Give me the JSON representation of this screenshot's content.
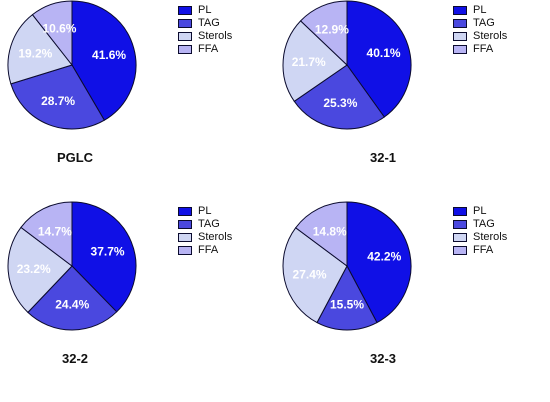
{
  "chart_data": [
    {
      "type": "pie",
      "title": "PGLC",
      "categories": [
        "PL",
        "TAG",
        "Sterols",
        "FFA"
      ],
      "values": [
        41.6,
        28.7,
        19.2,
        10.6
      ],
      "labels": [
        "41.6%",
        "28.7%",
        "19.2%",
        "10.6%"
      ],
      "legend_position": "top-right"
    },
    {
      "type": "pie",
      "title": "32-1",
      "categories": [
        "PL",
        "TAG",
        "Sterols",
        "FFA"
      ],
      "values": [
        40.1,
        25.3,
        21.7,
        12.9
      ],
      "labels": [
        "40.1%",
        "25.3%",
        "21.7%",
        "12.9%"
      ],
      "legend_position": "top-right"
    },
    {
      "type": "pie",
      "title": "32-2",
      "categories": [
        "PL",
        "TAG",
        "Sterols",
        "FFA"
      ],
      "values": [
        37.7,
        24.4,
        23.2,
        14.7
      ],
      "labels": [
        "37.7%",
        "24.4%",
        "23.2%",
        "14.7%"
      ],
      "legend_position": "top-right"
    },
    {
      "type": "pie",
      "title": "32-3",
      "categories": [
        "PL",
        "TAG",
        "Sterols",
        "FFA"
      ],
      "values": [
        42.2,
        15.5,
        27.4,
        14.8
      ],
      "labels": [
        "42.2%",
        "15.5%",
        "27.4%",
        "14.8%"
      ],
      "legend_position": "top-right"
    }
  ],
  "colors": {
    "PL": "#1010e6",
    "TAG": "#4a48df",
    "Sterols": "#cfd6f3",
    "FFA": "#b8b4f4",
    "outline": "#0b0b2e"
  }
}
